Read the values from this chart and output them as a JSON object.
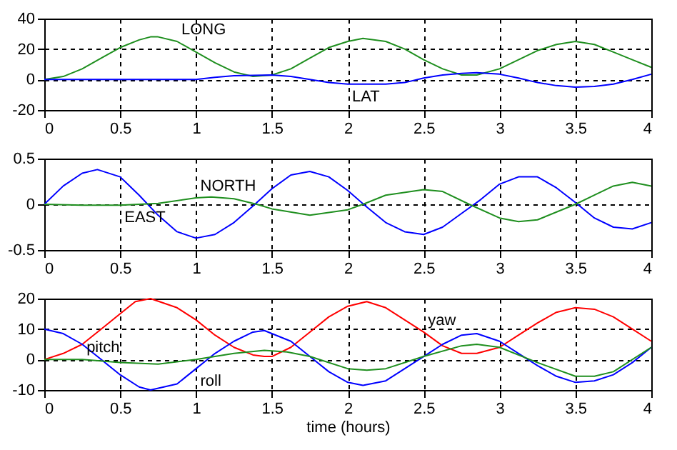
{
  "chart_data": [
    {
      "type": "line",
      "xlim": [
        0,
        4
      ],
      "xticks": [
        0,
        0.5,
        1,
        1.5,
        2,
        2.5,
        3,
        3.5,
        4
      ],
      "ylim": [
        -20,
        40
      ],
      "yticks": [
        -20,
        0,
        20,
        40
      ],
      "grid": true,
      "annotations": [
        {
          "text": "LONG",
          "x": 0.875,
          "y": 25
        },
        {
          "text": "LAT",
          "x": 2,
          "y": -3
        }
      ],
      "series": [
        {
          "color": "#1f8f1f",
          "x": [
            0,
            0.125,
            0.25,
            0.375,
            0.5,
            0.625,
            0.7,
            0.75,
            0.875,
            1,
            1.125,
            1.25,
            1.375,
            1.5,
            1.625,
            1.75,
            1.875,
            2,
            2.1,
            2.25,
            2.375,
            2.5,
            2.625,
            2.75,
            2.85,
            3,
            3.125,
            3.25,
            3.375,
            3.5,
            3.625,
            3.75,
            3.875,
            4
          ],
          "values": [
            0,
            2,
            7,
            14,
            21,
            26,
            28,
            28,
            25,
            18,
            11,
            5,
            2,
            3,
            7,
            14,
            21,
            25,
            27,
            25,
            20,
            13,
            7,
            3,
            3,
            7,
            13,
            19,
            23,
            25,
            23,
            18,
            13,
            8
          ]
        },
        {
          "color": "#0000ff",
          "x": [
            0,
            1,
            1.125,
            1.25,
            1.5,
            1.625,
            1.75,
            1.875,
            2,
            2.25,
            2.375,
            2.5,
            2.625,
            2.75,
            2.85,
            3,
            3.125,
            3.25,
            3.375,
            3.5,
            3.625,
            3.75,
            3.875,
            4
          ],
          "values": [
            0,
            0,
            1.5,
            2.5,
            3,
            2,
            0,
            -2,
            -3,
            -3,
            -2,
            1,
            3,
            4,
            4.5,
            3.5,
            1,
            -2,
            -4,
            -5,
            -4.5,
            -3,
            0,
            3.5
          ]
        }
      ]
    },
    {
      "type": "line",
      "xlim": [
        0,
        4
      ],
      "xticks": [
        0,
        0.5,
        1,
        1.5,
        2,
        2.5,
        3,
        3.5,
        4
      ],
      "ylim": [
        -0.5,
        0.5
      ],
      "yticks": [
        -0.5,
        0,
        0.5
      ],
      "grid": true,
      "annotations": [
        {
          "text": "NORTH",
          "x": 1,
          "y": 0.07
        },
        {
          "text": "EAST",
          "x": 0.5,
          "y": -0.01
        }
      ],
      "series": [
        {
          "color": "#0000ff",
          "x": [
            0,
            0.125,
            0.25,
            0.35,
            0.5,
            0.625,
            0.75,
            0.875,
            1,
            1.125,
            1.25,
            1.375,
            1.5,
            1.625,
            1.75,
            1.875,
            2,
            2.125,
            2.25,
            2.375,
            2.5,
            2.625,
            2.75,
            2.875,
            3,
            3.125,
            3.25,
            3.375,
            3.5,
            3.625,
            3.75,
            3.875,
            4
          ],
          "values": [
            0,
            0.2,
            0.34,
            0.38,
            0.3,
            0.1,
            -0.12,
            -0.3,
            -0.37,
            -0.33,
            -0.2,
            -0.02,
            0.17,
            0.32,
            0.36,
            0.3,
            0.15,
            -0.03,
            -0.2,
            -0.3,
            -0.33,
            -0.25,
            -0.1,
            0.05,
            0.22,
            0.3,
            0.3,
            0.18,
            0.02,
            -0.15,
            -0.25,
            -0.27,
            -0.2
          ]
        },
        {
          "color": "#1f8f1f",
          "x": [
            0,
            0.25,
            0.5,
            0.75,
            1,
            1.1,
            1.25,
            1.4,
            1.5,
            1.75,
            2,
            2.1,
            2.25,
            2.5,
            2.625,
            2.8,
            3,
            3.125,
            3.25,
            3.5,
            3.625,
            3.75,
            3.875,
            4
          ],
          "values": [
            0,
            -0.01,
            -0.01,
            0.01,
            0.07,
            0.08,
            0.06,
            0,
            -0.05,
            -0.12,
            -0.06,
            0,
            0.1,
            0.16,
            0.14,
            0,
            -0.15,
            -0.19,
            -0.17,
            0,
            0.1,
            0.2,
            0.24,
            0.2
          ]
        }
      ]
    },
    {
      "type": "line",
      "xlim": [
        0,
        4
      ],
      "xticks": [
        0,
        0.5,
        1,
        1.5,
        2,
        2.5,
        3,
        3.5,
        4
      ],
      "ylim": [
        -10,
        20
      ],
      "yticks": [
        -10,
        0,
        10,
        20
      ],
      "grid": true,
      "xlabel": "time (hours)",
      "annotations": [
        {
          "text": "pitch",
          "x": 0.25,
          "y": 0
        },
        {
          "text": "roll",
          "x": 1,
          "y": -3
        },
        {
          "text": "yaw",
          "x": 2.5,
          "y": 9
        }
      ],
      "series": [
        {
          "color": "#ff0000",
          "x": [
            0,
            0.125,
            0.25,
            0.375,
            0.5,
            0.6,
            0.7,
            0.875,
            1,
            1.125,
            1.25,
            1.375,
            1.45,
            1.5,
            1.625,
            1.75,
            1.875,
            2,
            2.125,
            2.25,
            2.375,
            2.5,
            2.625,
            2.75,
            2.85,
            3,
            3.125,
            3.25,
            3.375,
            3.5,
            3.625,
            3.75,
            3.875,
            4
          ],
          "values": [
            0,
            2,
            5,
            10,
            15,
            19,
            20,
            17,
            13,
            8,
            4,
            1.5,
            1,
            1,
            4,
            9,
            14,
            17.5,
            19,
            17,
            13,
            9,
            4.5,
            2,
            2,
            4,
            8,
            12,
            15.5,
            17,
            16.5,
            14,
            10,
            6
          ]
        },
        {
          "color": "#0000ff",
          "x": [
            0,
            0.125,
            0.25,
            0.375,
            0.5,
            0.625,
            0.7,
            0.875,
            1,
            1.125,
            1.25,
            1.375,
            1.45,
            1.625,
            1.75,
            1.875,
            2,
            2.1,
            2.25,
            2.375,
            2.5,
            2.625,
            2.75,
            2.85,
            3,
            3.125,
            3.25,
            3.375,
            3.5,
            3.625,
            3.75,
            3.875,
            4
          ],
          "values": [
            10,
            8.5,
            5,
            0,
            -5,
            -9,
            -10,
            -8,
            -3,
            2,
            6,
            9,
            9.5,
            6,
            1,
            -4,
            -7.5,
            -8.5,
            -7,
            -3,
            1,
            5,
            8,
            8.5,
            6,
            2,
            -2,
            -5.5,
            -7.5,
            -7,
            -5,
            -1,
            4
          ]
        },
        {
          "color": "#1f8f1f",
          "x": [
            0,
            0.25,
            0.5,
            0.75,
            1,
            1.25,
            1.45,
            1.6,
            1.75,
            2,
            2.125,
            2.25,
            2.5,
            2.75,
            2.85,
            3,
            3.25,
            3.5,
            3.625,
            3.75,
            4
          ],
          "values": [
            0,
            0,
            -1,
            -1.5,
            0,
            2,
            3,
            2.5,
            1,
            -3,
            -3.5,
            -3,
            1,
            4.5,
            5,
            4,
            -1,
            -5.5,
            -5.5,
            -4,
            4
          ]
        }
      ]
    }
  ]
}
